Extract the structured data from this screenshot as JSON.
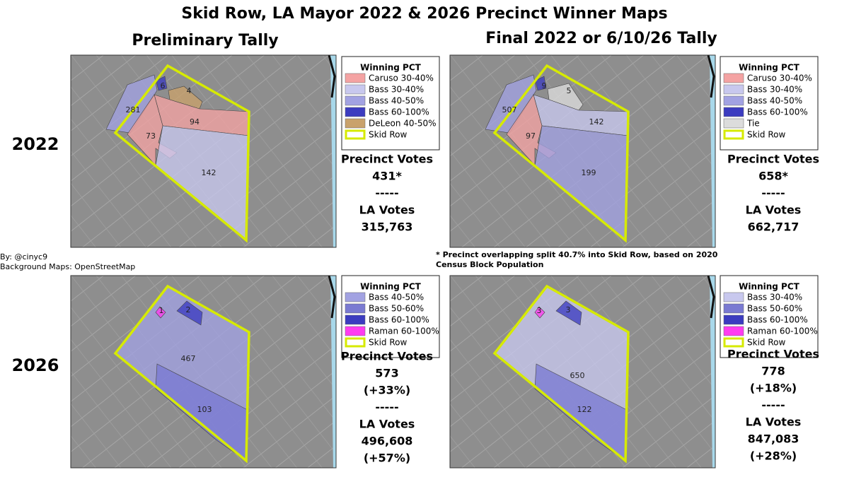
{
  "title": "Skid Row, LA Mayor 2022 & 2026 Precinct Winner Maps",
  "column_headers": [
    "Preliminary Tally",
    "Final 2022 or 6/10/26 Tally"
  ],
  "row_labels": [
    "2022",
    "2026"
  ],
  "credits": [
    "By: @cinyc9",
    "Background Maps: OpenStreetMap"
  ],
  "footnote": "* Precinct overlapping split 40.7% into Skid Row, based on 2020 Census Block Population",
  "panels": [
    {
      "legend": {
        "title": "Winning PCT",
        "items": [
          {
            "label": "Caruso 30-40%",
            "color": "#f4a3a3"
          },
          {
            "label": "Bass 30-40%",
            "color": "#c8c8ee"
          },
          {
            "label": "Bass 40-50%",
            "color": "#a2a2e2"
          },
          {
            "label": "Bass 60-100%",
            "color": "#3c3cc0"
          },
          {
            "label": "DeLeon 40-50%",
            "color": "#c9a26c"
          },
          {
            "label": "Skid Row",
            "color": "#d6ea00",
            "outline": true
          }
        ]
      },
      "precincts": [
        {
          "label": "281",
          "color": "#a2a2e2"
        },
        {
          "label": "6",
          "color": "#3c3cc0"
        },
        {
          "label": "4",
          "color": "#c9a26c"
        },
        {
          "label": "94",
          "color": "#f4a3a3"
        },
        {
          "label": "73",
          "color": "#f4a3a3"
        },
        {
          "label": "142",
          "color": "#c8c8ee"
        }
      ],
      "stats": [
        "Precinct Votes",
        "431*",
        "-----",
        "LA Votes",
        "315,763"
      ]
    },
    {
      "legend": {
        "title": "Winning PCT",
        "items": [
          {
            "label": "Caruso 30-40%",
            "color": "#f4a3a3"
          },
          {
            "label": "Bass 30-40%",
            "color": "#c8c8ee"
          },
          {
            "label": "Bass 40-50%",
            "color": "#a2a2e2"
          },
          {
            "label": "Bass 60-100%",
            "color": "#3c3cc0"
          },
          {
            "label": "Tie",
            "color": "#dcdcdc"
          },
          {
            "label": "Skid Row",
            "color": "#d6ea00",
            "outline": true
          }
        ]
      },
      "precincts": [
        {
          "label": "507",
          "color": "#a2a2e2"
        },
        {
          "label": "9",
          "color": "#3c3cc0"
        },
        {
          "label": "5",
          "color": "#dcdcdc"
        },
        {
          "label": "142",
          "color": "#c8c8ee"
        },
        {
          "label": "97",
          "color": "#f4a3a3"
        },
        {
          "label": "199",
          "color": "#a2a2e2"
        }
      ],
      "stats": [
        "Precinct Votes",
        "658*",
        "-----",
        "LA Votes",
        "662,717"
      ]
    },
    {
      "legend": {
        "title": "Winning PCT",
        "items": [
          {
            "label": "Bass 40-50%",
            "color": "#a2a2e2"
          },
          {
            "label": "Bass 50-60%",
            "color": "#7a7ad2"
          },
          {
            "label": "Bass 60-100%",
            "color": "#3c3cc0"
          },
          {
            "label": "Raman 60-100%",
            "color": "#ff3cf0"
          },
          {
            "label": "Skid Row",
            "color": "#d6ea00",
            "outline": true
          }
        ]
      },
      "precincts": [
        {
          "label": "467",
          "color": "#a2a2e2"
        },
        {
          "label": "103",
          "color": "#7a7ad2"
        },
        {
          "label": "1",
          "color": "#ff3cf0"
        },
        {
          "label": "2",
          "color": "#3c3cc0"
        }
      ],
      "stats": [
        "Precinct Votes",
        "573",
        "(+33%)",
        "-----",
        "LA Votes",
        "496,608",
        "(+57%)"
      ]
    },
    {
      "legend": {
        "title": "Winning PCT",
        "items": [
          {
            "label": "Bass 30-40%",
            "color": "#c8c8ee"
          },
          {
            "label": "Bass 50-60%",
            "color": "#7a7ad2"
          },
          {
            "label": "Bass 60-100%",
            "color": "#3c3cc0"
          },
          {
            "label": "Raman 60-100%",
            "color": "#ff3cf0"
          },
          {
            "label": "Skid Row",
            "color": "#d6ea00",
            "outline": true
          }
        ]
      },
      "precincts": [
        {
          "label": "650",
          "color": "#c8c8ee"
        },
        {
          "label": "122",
          "color": "#7a7ad2"
        },
        {
          "label": "3",
          "color": "#ff3cf0"
        },
        {
          "label": "3",
          "color": "#3c3cc0"
        }
      ],
      "stats": [
        "Precinct Votes",
        "778",
        "(+18%)",
        "-----",
        "LA Votes",
        "847,083",
        "(+28%)"
      ]
    }
  ]
}
